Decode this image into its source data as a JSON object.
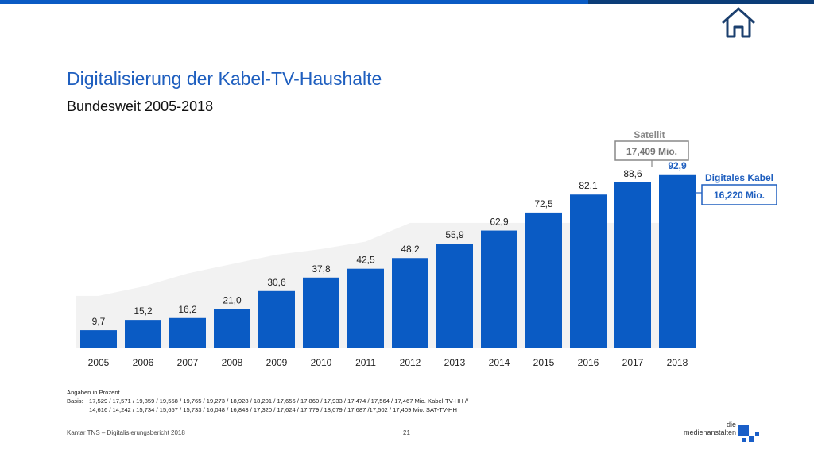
{
  "header": {
    "title": "Digitalisierung der Kabel-TV-Haushalte",
    "subtitle": "Bundesweit 2005-2018"
  },
  "colors": {
    "accent": "#1f5fbf",
    "bar": "#0a5bc4",
    "satellite_area": "#f2f2f2",
    "topbar_dark": "#0b3d78"
  },
  "chart_data": {
    "type": "bar",
    "categories": [
      "2005",
      "2006",
      "2007",
      "2008",
      "2009",
      "2010",
      "2011",
      "2012",
      "2013",
      "2014",
      "2015",
      "2016",
      "2017",
      "2018"
    ],
    "series": [
      {
        "name": "Digitales Kabel",
        "values": [
          9.7,
          15.2,
          16.2,
          21.0,
          30.6,
          37.8,
          42.5,
          48.2,
          55.9,
          62.9,
          72.5,
          82.1,
          88.6,
          92.9
        ]
      },
      {
        "name": "Satellit",
        "type": "area",
        "values": [
          28,
          33,
          40,
          45,
          50,
          53,
          57,
          67,
          67,
          67,
          67,
          67,
          67,
          67
        ]
      }
    ],
    "value_labels": [
      "9,7",
      "15,2",
      "16,2",
      "21,0",
      "30,6",
      "37,8",
      "42,5",
      "48,2",
      "55,9",
      "62,9",
      "72,5",
      "82,1",
      "88,6",
      "92,9"
    ],
    "ylim": [
      0,
      100
    ],
    "callouts": {
      "satellite": {
        "label": "Satellit",
        "value": "17,409 Mio."
      },
      "cable": {
        "label": "Digitales Kabel",
        "value": "16,220 Mio."
      }
    }
  },
  "footnote": {
    "line1": "Angaben in Prozent",
    "basis_label": "Basis:",
    "basis_line1": "17,529 / 17,571 / 19,859 / 19,558 / 19,765 / 19,273 / 18,928 / 18,201 / 17,656 / 17,860 / 17,933 / 17,474 / 17,564 / 17,467 Mio. Kabel-TV-HH //",
    "basis_line2": "14,616 / 14,242 / 15,734 / 15,657 / 15,733 / 16,048 / 16,843 / 17,320 / 17,624 / 17,779 / 18,079 / 17,687 /17,502 / 17,409 Mio. SAT-TV-HH"
  },
  "footer": {
    "source": "Kantar TNS – Digitalisierungsbericht 2018",
    "page": "21",
    "logo_line1": "die",
    "logo_line2": "medienanstalten"
  }
}
